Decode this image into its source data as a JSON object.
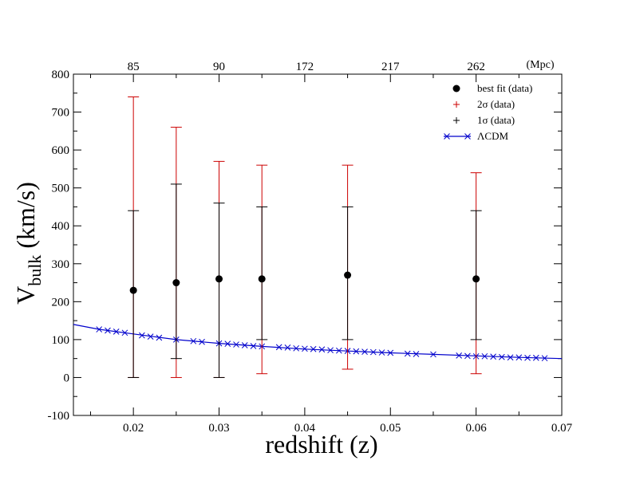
{
  "chart_data": {
    "type": "scatter",
    "title": "",
    "xlabel": "redshift (z)",
    "ylabel": {
      "main": "V",
      "sub": "bulk",
      "unit": "(km/s)"
    },
    "xlim": [
      0.013,
      0.07
    ],
    "ylim": [
      -100,
      800
    ],
    "grid": false,
    "legend_position": "top-right",
    "x_ticks": [
      "0.02",
      "0.03",
      "0.04",
      "0.05",
      "0.06",
      "0.07"
    ],
    "x_tick_values": [
      0.02,
      0.03,
      0.04,
      0.05,
      0.06,
      0.07
    ],
    "y_ticks": [
      "-100",
      "0",
      "100",
      "200",
      "300",
      "400",
      "500",
      "600",
      "700",
      "800"
    ],
    "y_tick_values": [
      -100,
      0,
      100,
      200,
      300,
      400,
      500,
      600,
      700,
      800
    ],
    "top_axis": {
      "unit_label": "(Mpc)",
      "labels": [
        "85",
        "90",
        "172",
        "217",
        "262"
      ],
      "label_positions_z": [
        0.02,
        0.03,
        0.04,
        0.05,
        0.06
      ]
    },
    "series": [
      {
        "name": "best fit (data)",
        "marker": "filled-circle",
        "color": "#000000",
        "x": [
          0.02,
          0.025,
          0.03,
          0.035,
          0.045,
          0.06
        ],
        "y": [
          230,
          250,
          260,
          260,
          270,
          260
        ]
      },
      {
        "name": "2σ (data)",
        "marker": "plus",
        "color": "#cc0000",
        "x": [
          0.02,
          0.025,
          0.03,
          0.035,
          0.045,
          0.06
        ],
        "lower": [
          0,
          0,
          0,
          10,
          22,
          10
        ],
        "upper": [
          740,
          660,
          570,
          560,
          560,
          540
        ]
      },
      {
        "name": "1σ (data)",
        "marker": "plus",
        "color": "#000000",
        "x": [
          0.02,
          0.025,
          0.03,
          0.035,
          0.045,
          0.06
        ],
        "lower": [
          0,
          50,
          0,
          100,
          100,
          100
        ],
        "upper": [
          440,
          510,
          460,
          450,
          450,
          440
        ]
      },
      {
        "name": "ΛCDM",
        "marker": "x",
        "color": "#0000cc",
        "curve": {
          "x": [
            0.013,
            0.016,
            0.02,
            0.025,
            0.03,
            0.035,
            0.04,
            0.045,
            0.05,
            0.055,
            0.06,
            0.065,
            0.07
          ],
          "y": [
            140,
            127,
            115,
            100,
            90,
            82,
            75,
            70,
            65,
            61,
            57,
            53,
            50
          ]
        },
        "markers_x": [
          0.016,
          0.017,
          0.018,
          0.019,
          0.021,
          0.022,
          0.023,
          0.025,
          0.027,
          0.028,
          0.03,
          0.031,
          0.032,
          0.033,
          0.034,
          0.035,
          0.037,
          0.038,
          0.039,
          0.04,
          0.041,
          0.042,
          0.043,
          0.044,
          0.045,
          0.046,
          0.047,
          0.048,
          0.049,
          0.05,
          0.052,
          0.053,
          0.055,
          0.058,
          0.059,
          0.06,
          0.061,
          0.062,
          0.063,
          0.064,
          0.065,
          0.066,
          0.067,
          0.068
        ],
        "markers_y": [
          127,
          124,
          121,
          118,
          111,
          108,
          105,
          100,
          96,
          94,
          90,
          89,
          87,
          85,
          83,
          82,
          80,
          79,
          77,
          76,
          75,
          74,
          72,
          71,
          70,
          69,
          68,
          67,
          66,
          65,
          63,
          62,
          61,
          58,
          57,
          56,
          56,
          55,
          54,
          53,
          53,
          52,
          52,
          51
        ]
      }
    ]
  }
}
